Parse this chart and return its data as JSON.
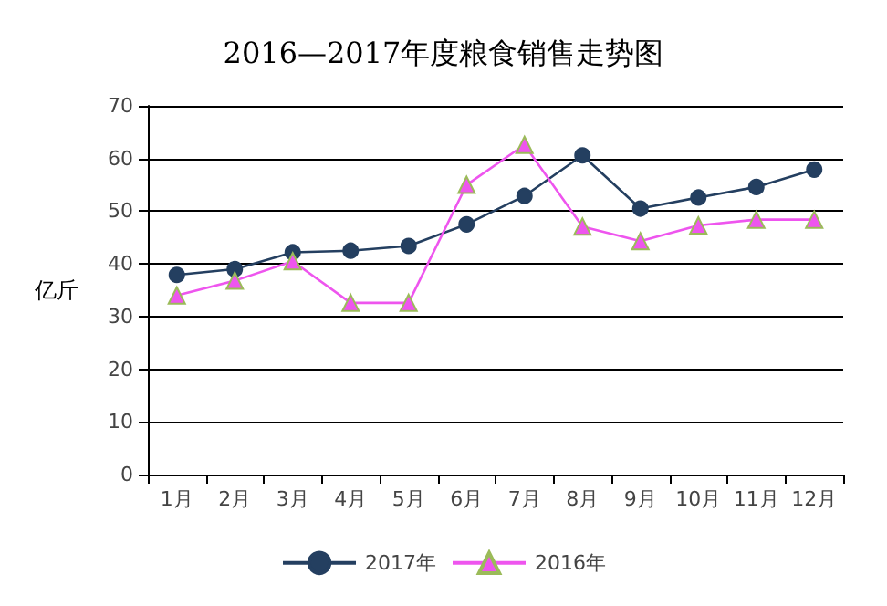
{
  "chart_data": {
    "type": "line",
    "title": "2016—2017年度粮食销售走势图",
    "ylabel": "亿斤",
    "categories": [
      "1月",
      "2月",
      "3月",
      "4月",
      "5月",
      "6月",
      "7月",
      "8月",
      "9月",
      "10月",
      "11月",
      "12月"
    ],
    "series": [
      {
        "name": "2017年",
        "color": "#243f60",
        "marker": "circle",
        "values": [
          37.9,
          39.0,
          42.2,
          42.5,
          43.4,
          47.5,
          52.9,
          60.6,
          50.5,
          52.6,
          54.6,
          57.9
        ]
      },
      {
        "name": "2016年",
        "color": "#ee55ee",
        "marker": "triangle",
        "values": [
          34.0,
          36.8,
          40.5,
          32.6,
          32.6,
          55.0,
          62.6,
          47.1,
          44.3,
          47.3,
          48.4,
          48.4
        ]
      }
    ],
    "ylim": [
      0,
      70
    ],
    "yticks": [
      0,
      10,
      20,
      30,
      40,
      50,
      60,
      70
    ],
    "grid": "y",
    "legend": "bottom",
    "line_style": "solid"
  }
}
